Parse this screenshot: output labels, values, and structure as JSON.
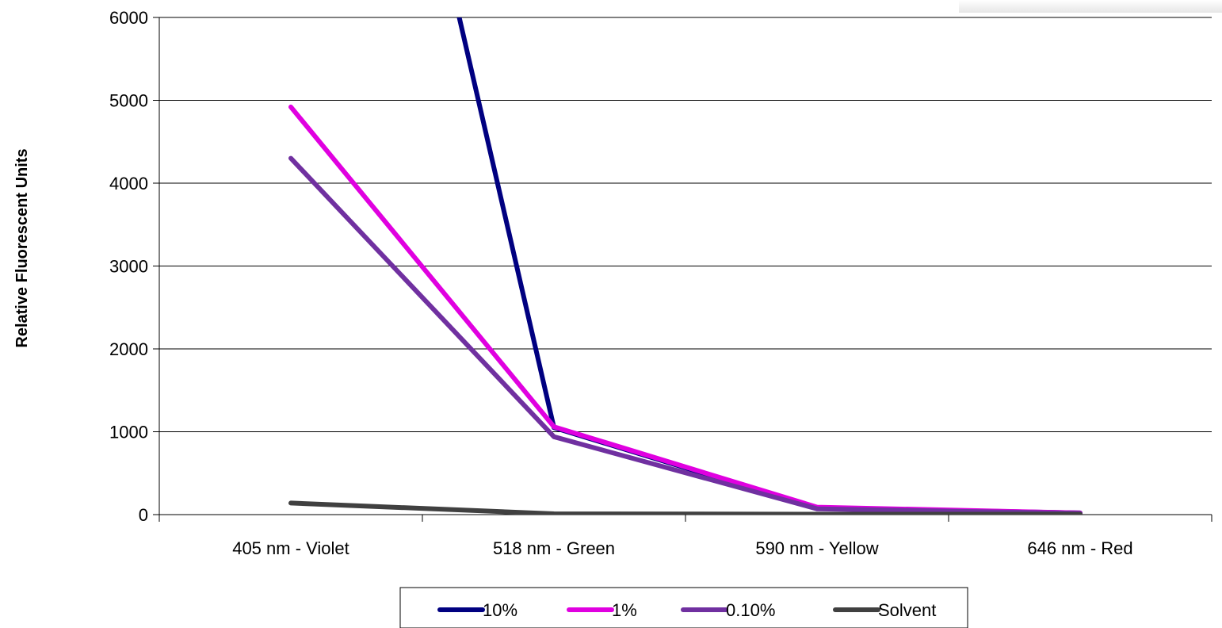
{
  "chart_data": {
    "type": "line",
    "title": "",
    "xlabel": "",
    "ylabel": "Relative Fluorescent Units",
    "categories": [
      "405 nm - Violet",
      "518 nm - Green",
      "590 nm - Yellow",
      "646 nm - Red"
    ],
    "ylim": [
      0,
      6000
    ],
    "yticks": [
      0,
      1000,
      2000,
      3000,
      4000,
      5000,
      6000
    ],
    "grid": true,
    "legend_position": "bottom",
    "series": [
      {
        "name": "10%",
        "color": "#000080",
        "values": [
          null,
          1050,
          80,
          20
        ],
        "segment_start": {
          "category_index": 0.64,
          "value": 6000
        }
      },
      {
        "name": "1%",
        "color": "#E000E0",
        "values": [
          4920,
          1060,
          90,
          20
        ]
      },
      {
        "name": "0.10%",
        "color": "#7030A0",
        "values": [
          4300,
          940,
          70,
          15
        ]
      },
      {
        "name": "Solvent",
        "color": "#404040",
        "values": [
          140,
          10,
          5,
          5
        ]
      }
    ]
  }
}
